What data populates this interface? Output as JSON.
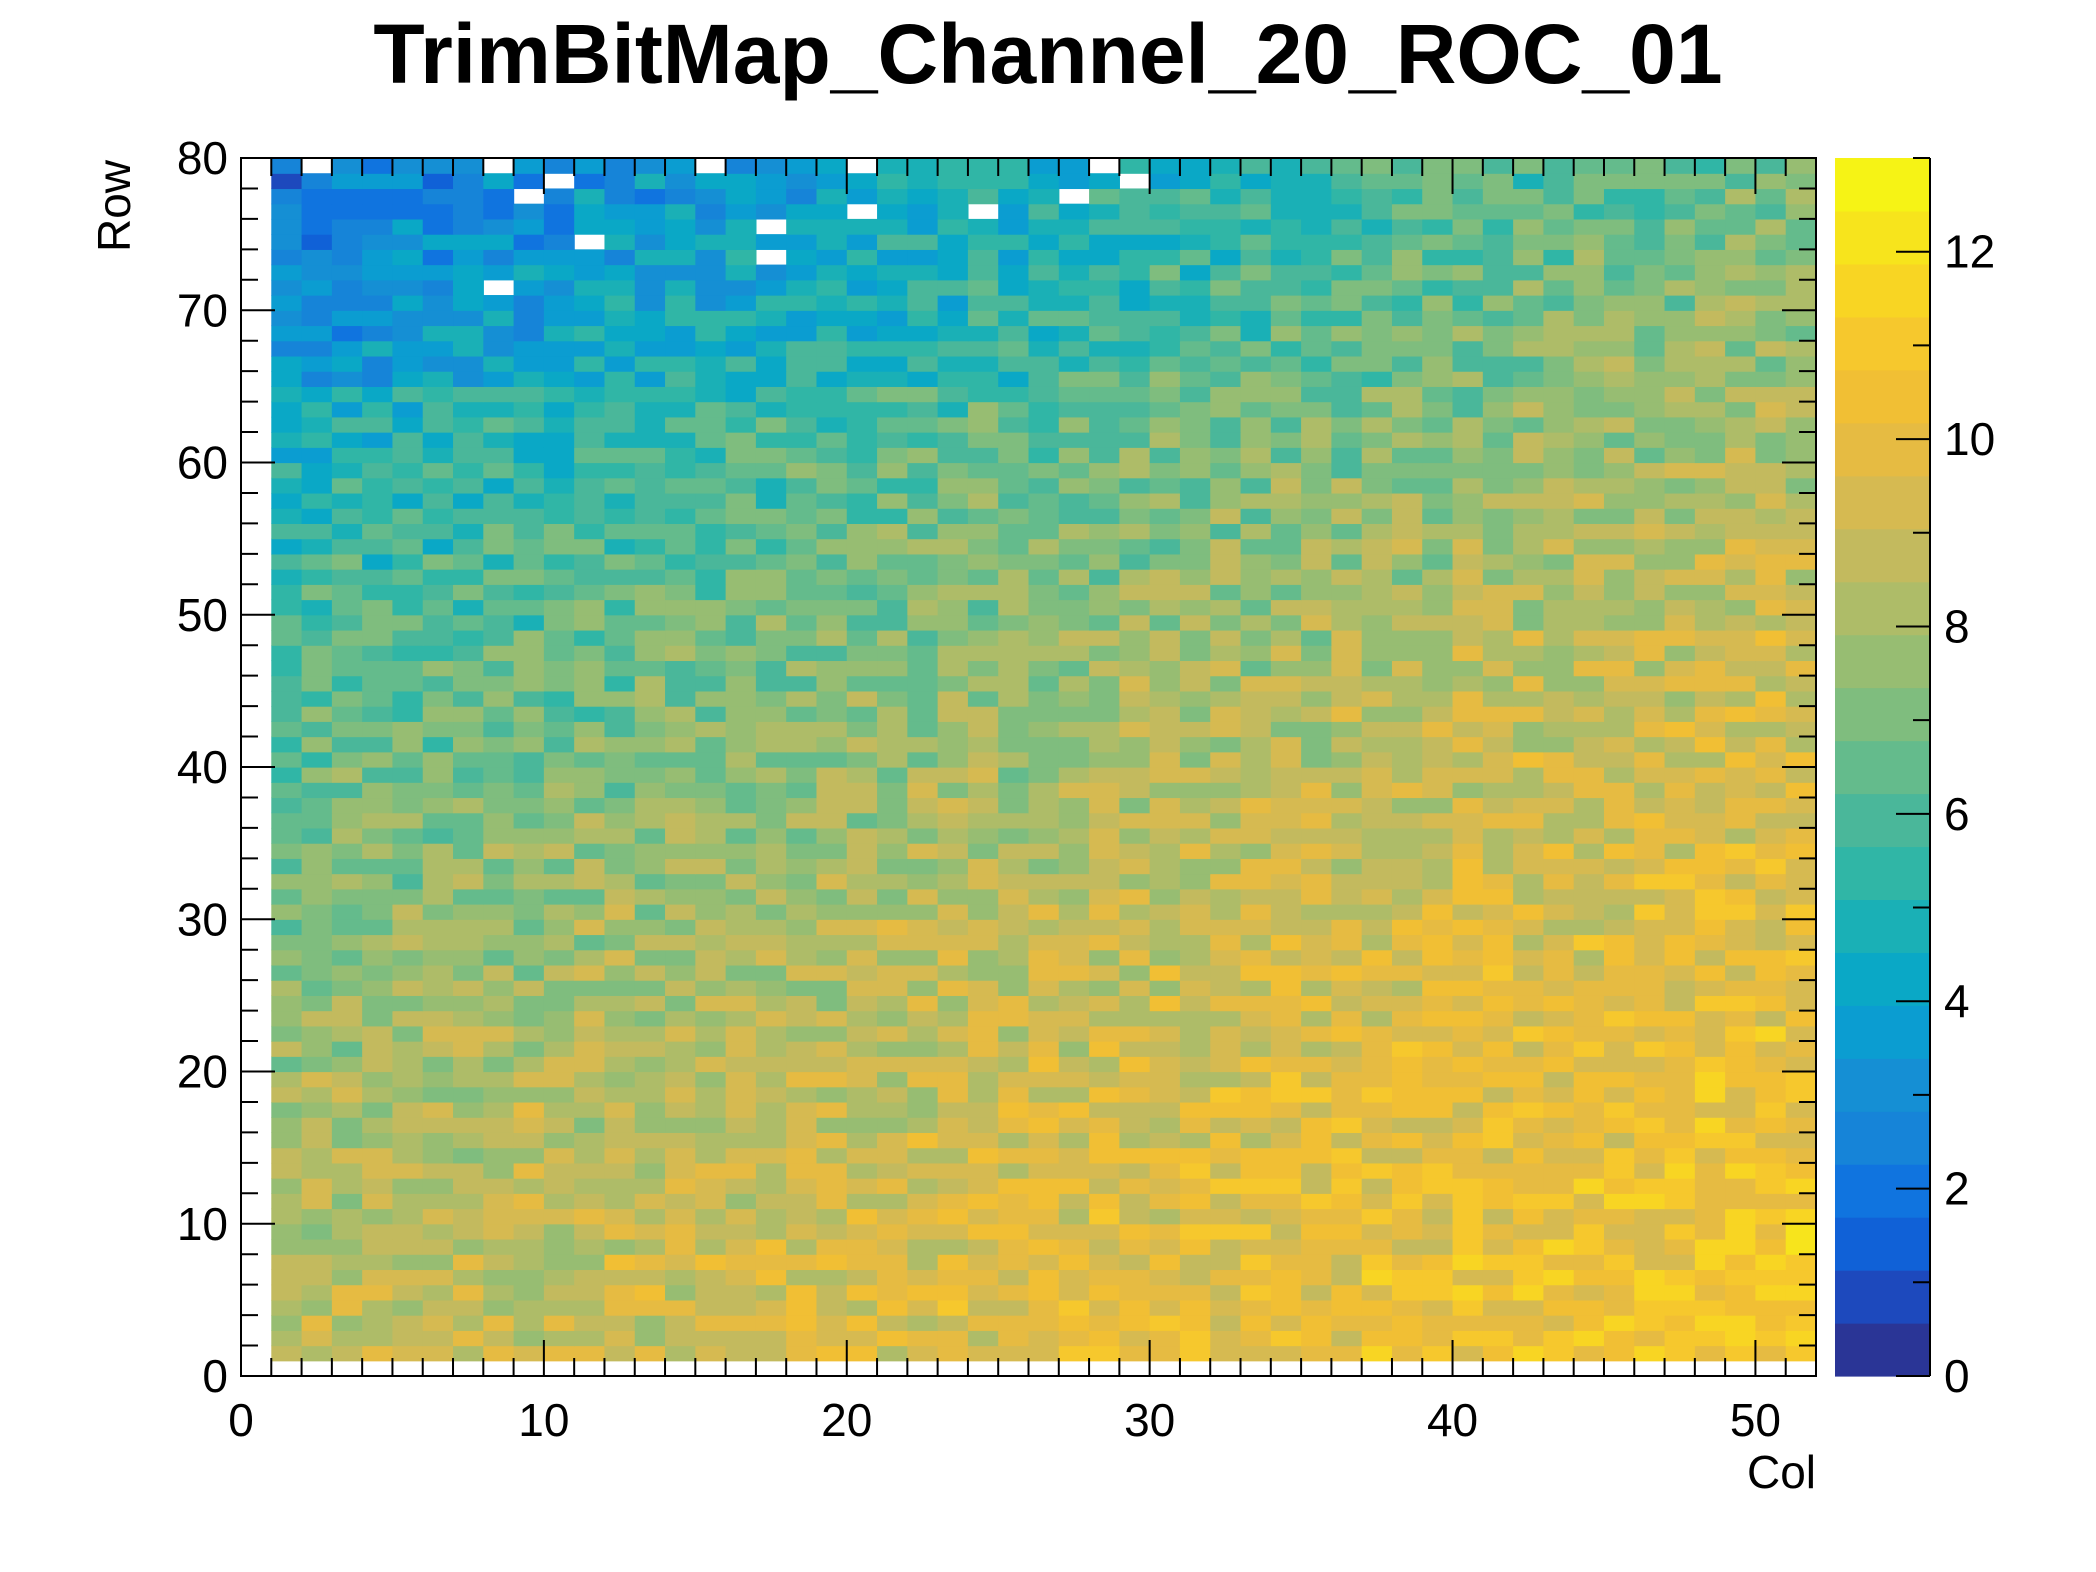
{
  "chart_data": {
    "type": "heatmap",
    "title": "TrimBitMap_Channel_20_ROC_01",
    "xlabel": "Col",
    "ylabel": "Row",
    "xlim": [
      0,
      52
    ],
    "ylim": [
      0,
      80
    ],
    "zlim": [
      0,
      13
    ],
    "x_ticks": [
      "0",
      "10",
      "20",
      "30",
      "40",
      "50"
    ],
    "y_ticks": [
      "0",
      "10",
      "20",
      "30",
      "40",
      "50",
      "60",
      "70",
      "80"
    ],
    "z_ticks": [
      "0",
      "2",
      "4",
      "6",
      "8",
      "10",
      "12"
    ],
    "bins": {
      "x": 52,
      "y": 80,
      "x_width": 1,
      "y_width": 1
    },
    "filled_cols": [
      1,
      51
    ],
    "filled_rows": [
      1,
      79
    ],
    "grid_description_of_trend": {
      "low_corner": "top-left (Col 1-30, Row 65-79) values ~1-4",
      "high_corner": "bottom-right (Col 40-51, Row 1-30) values ~9-12",
      "typical_center": "values ~6-8"
    },
    "empty_cells": [
      [
        2,
        79
      ],
      [
        8,
        79
      ],
      [
        15,
        79
      ],
      [
        20,
        79
      ],
      [
        28,
        79
      ],
      [
        10,
        78
      ],
      [
        29,
        78
      ],
      [
        9,
        77
      ],
      [
        27,
        77
      ],
      [
        20,
        76
      ],
      [
        24,
        76
      ],
      [
        17,
        75
      ],
      [
        11,
        74
      ],
      [
        17,
        73
      ],
      [
        8,
        71
      ]
    ],
    "palette": [
      "#2a3596",
      "#1d49bd",
      "#1061d7",
      "#1074df",
      "#1684d8",
      "#158fd4",
      "#0b9dd1",
      "#0aa8c6",
      "#1ab0b6",
      "#30b6a6",
      "#4ab79a",
      "#64bb8c",
      "#7fbd7e",
      "#97bd72",
      "#aebc68",
      "#c3ba5e",
      "#d6ba51",
      "#e6bb42",
      "#f1bf34",
      "#f6c82d",
      "#f8d523",
      "#f7e41c",
      "#f6f315"
    ],
    "row_slices": [
      {
        "row": 79,
        "values_sample": [
          3,
          2,
          3,
          3,
          4,
          2,
          3,
          4,
          5,
          4
        ]
      },
      {
        "row": 40,
        "values_sample": [
          6,
          5,
          6,
          7,
          6,
          7,
          8,
          8,
          9,
          8
        ]
      },
      {
        "row": 10,
        "values_sample": [
          8,
          8,
          7,
          9,
          8,
          9,
          9,
          10,
          11,
          10
        ]
      }
    ]
  }
}
